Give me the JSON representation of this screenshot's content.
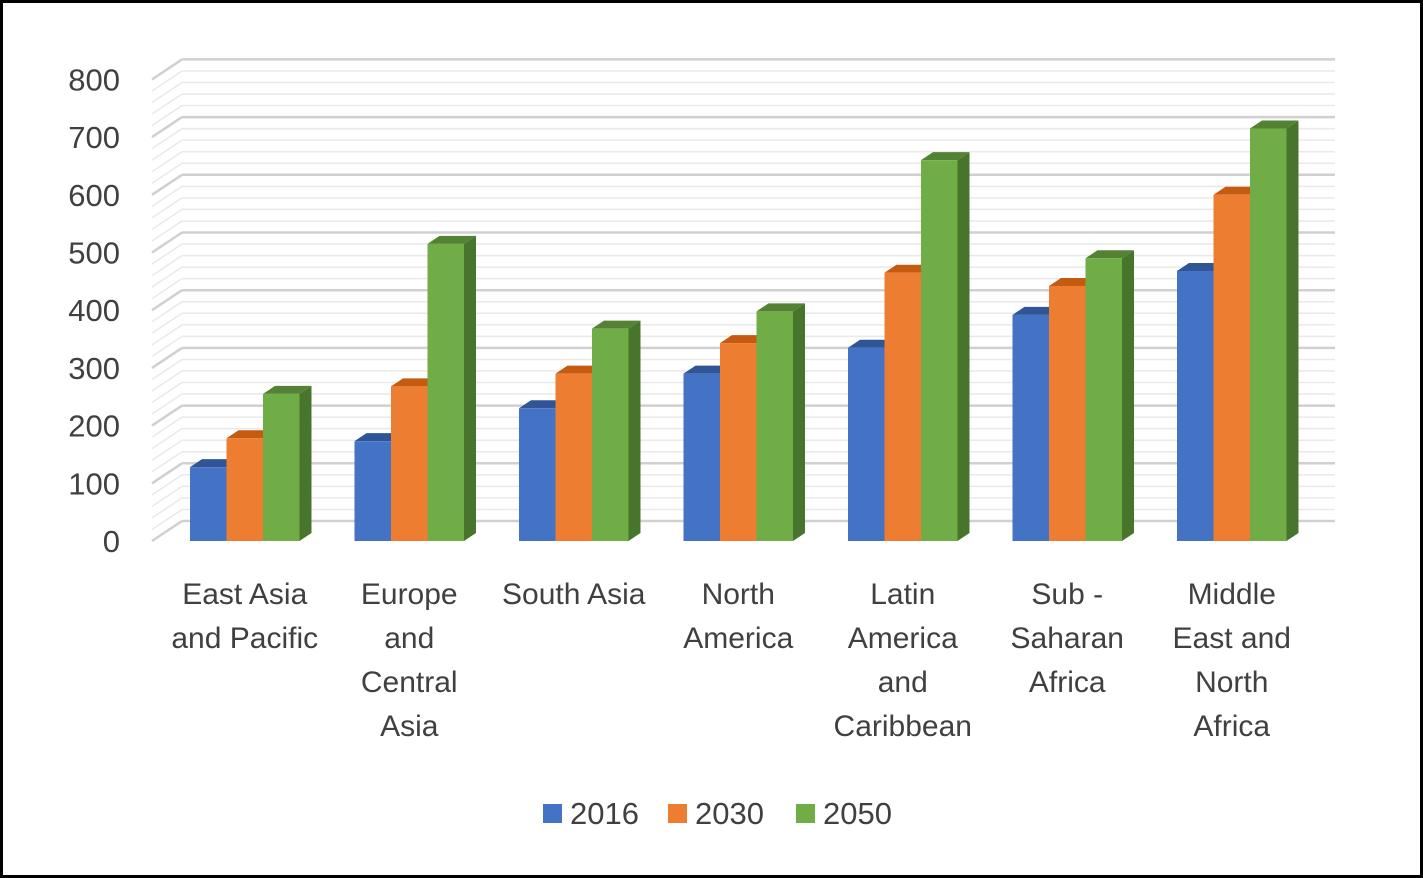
{
  "chart_data": {
    "type": "bar",
    "title": "",
    "xlabel": "",
    "ylabel": "",
    "ylim": [
      0,
      800
    ],
    "yticks": [
      "0",
      "100",
      "200",
      "300",
      "400",
      "500",
      "600",
      "700",
      "800"
    ],
    "grid": true,
    "style": "3d-clustered-column",
    "legend_position": "bottom",
    "categories": [
      [
        "East Asia",
        "and Pacific"
      ],
      [
        "Europe",
        "and",
        "Central",
        "Asia"
      ],
      [
        "South Asia"
      ],
      [
        "North",
        "America"
      ],
      [
        "Latin",
        "America",
        "and",
        "Caribbean"
      ],
      [
        "Sub -",
        "Saharan",
        "Africa"
      ],
      [
        "Middle",
        "East and",
        "North",
        "Africa"
      ]
    ],
    "series": [
      {
        "name": "2016",
        "color": "#4472C4",
        "side": "#2F5597",
        "top": "#2F5597",
        "values": [
          128,
          173,
          230,
          290,
          335,
          392,
          468
        ]
      },
      {
        "name": "2030",
        "color": "#ED7D31",
        "side": "#C55A11",
        "top": "#C55A11",
        "values": [
          178,
          268,
          290,
          343,
          465,
          442,
          600
        ]
      },
      {
        "name": "2050",
        "color": "#70AD47",
        "side": "#48752C",
        "top": "#548235",
        "values": [
          255,
          515,
          368,
          398,
          660,
          490,
          715
        ]
      }
    ]
  }
}
